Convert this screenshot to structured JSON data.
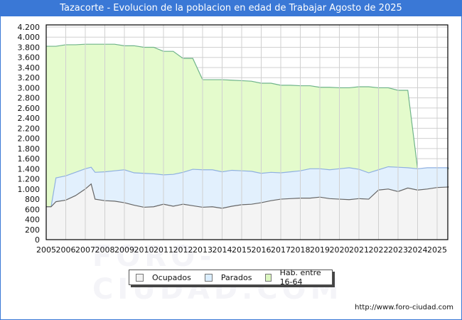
{
  "title": "Tazacorte - Evolucion de la poblacion en edad de Trabajar Agosto de 2025",
  "footer_url": "http://www.foro-ciudad.com",
  "watermark": "FORO-CIUDAD.COM",
  "legend": [
    {
      "label": "Ocupados",
      "color": "#f2f2f2"
    },
    {
      "label": "Parados",
      "color": "#dbeeff"
    },
    {
      "label": "Hab. entre 16-64",
      "color": "#dcf7c0"
    }
  ],
  "colors": {
    "title_bg": "#3a78d6",
    "hab_fill": "#e4fbcc",
    "hab_line": "#6fb48a",
    "parados_fill": "#e2f0fd",
    "parados_line": "#8fb0e0",
    "ocupados_fill": "#f4f4f4",
    "ocupados_line": "#666666",
    "grid": "#d0d0d0"
  },
  "chart_data": {
    "type": "area",
    "title": "Tazacorte - Evolucion de la poblacion en edad de Trabajar Agosto de 2025",
    "xlabel": "",
    "ylabel": "",
    "ylim": [
      0,
      4200
    ],
    "yticks": [
      "0",
      "200",
      "400",
      "600",
      "800",
      "1.000",
      "1.200",
      "1.400",
      "1.600",
      "1.800",
      "2.000",
      "2.200",
      "2.400",
      "2.600",
      "2.800",
      "3.000",
      "3.200",
      "3.400",
      "3.600",
      "3.800",
      "4.000",
      "4.200"
    ],
    "xticks": [
      "2005",
      "2006",
      "2007",
      "2008",
      "2009",
      "2010",
      "2011",
      "2012",
      "2013",
      "2014",
      "2015",
      "2016",
      "2017",
      "2018",
      "2019",
      "2020",
      "2021",
      "2022",
      "2023",
      "2024",
      "2025"
    ],
    "grid": true,
    "legend_position": "bottom",
    "x": [
      2005.0,
      2005.25,
      2005.5,
      2006.0,
      2006.5,
      2007.0,
      2007.3,
      2007.5,
      2008.0,
      2008.5,
      2009.0,
      2009.5,
      2010.0,
      2010.5,
      2011.0,
      2011.5,
      2012.0,
      2012.5,
      2013.0,
      2013.5,
      2014.0,
      2014.5,
      2015.0,
      2015.5,
      2016.0,
      2016.5,
      2017.0,
      2017.5,
      2018.0,
      2018.5,
      2019.0,
      2019.5,
      2020.0,
      2020.5,
      2021.0,
      2021.5,
      2022.0,
      2022.5,
      2023.0,
      2023.5,
      2024.0,
      2024.5,
      2025.0,
      2025.6
    ],
    "series": [
      {
        "name": "Hab. entre 16-64",
        "values": [
          3820,
          3820,
          3820,
          3850,
          3850,
          3860,
          3860,
          3860,
          3860,
          3860,
          3830,
          3830,
          3800,
          3800,
          3720,
          3720,
          3580,
          3580,
          3160,
          3160,
          3160,
          3150,
          3140,
          3130,
          3090,
          3090,
          3050,
          3050,
          3040,
          3040,
          3010,
          3010,
          3000,
          3000,
          3020,
          3020,
          3000,
          3000,
          2950,
          2950,
          1400,
          1400,
          1400,
          1400
        ]
      },
      {
        "name": "Parados",
        "values": [
          650,
          650,
          1220,
          1260,
          1330,
          1400,
          1430,
          1330,
          1340,
          1360,
          1380,
          1320,
          1310,
          1300,
          1280,
          1290,
          1330,
          1390,
          1380,
          1380,
          1340,
          1370,
          1360,
          1350,
          1310,
          1330,
          1320,
          1340,
          1360,
          1400,
          1400,
          1380,
          1400,
          1420,
          1390,
          1320,
          1380,
          1440,
          1430,
          1420,
          1400,
          1420,
          1420,
          1420
        ]
      },
      {
        "name": "Ocupados",
        "values": [
          650,
          650,
          750,
          780,
          870,
          1000,
          1100,
          800,
          770,
          760,
          730,
          680,
          640,
          650,
          700,
          660,
          700,
          670,
          640,
          650,
          620,
          660,
          690,
          700,
          730,
          770,
          800,
          810,
          820,
          820,
          840,
          810,
          800,
          790,
          810,
          800,
          980,
          1000,
          950,
          1020,
          980,
          1000,
          1030,
          1040
        ]
      }
    ]
  }
}
